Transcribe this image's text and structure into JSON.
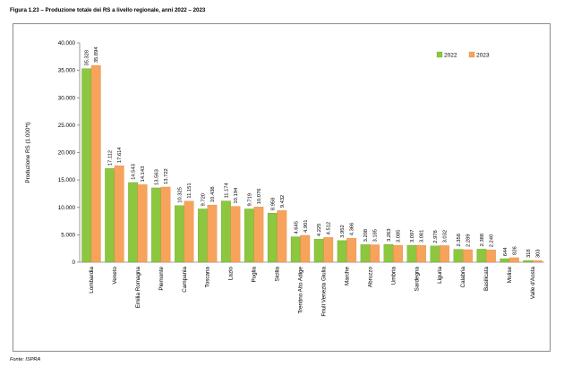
{
  "figure": {
    "title": "Figura 1.23 – Produzione totale dei RS a livello regionale, anni 2022 – 2023",
    "source": "Fonte: ISPRA"
  },
  "colors": {
    "s2022": "#8dc63f",
    "s2023": "#f7a35c",
    "axis": "#808080"
  },
  "chart_data": {
    "type": "bar",
    "ylabel": "Produzione RS (1.000*t)",
    "ylim": [
      0,
      40000
    ],
    "yticks": [
      "0",
      "5.000",
      "10.000",
      "15.000",
      "20.000",
      "25.000",
      "30.000",
      "35.000",
      "40.000"
    ],
    "legend_position": "top-right",
    "categories": [
      "Lombardia",
      "Veneto",
      "Emilia Romagna",
      "Piemonte",
      "Campania",
      "Toscana",
      "Lazio",
      "Puglia",
      "Sicilia",
      "Trentino Alto Adige",
      "Friuli Venezia Giulia",
      "Marche",
      "Abruzzo",
      "Umbria",
      "Sardegna",
      "Liguria",
      "Calabria",
      "Basilicata",
      "Molise",
      "Valle d'Aosta"
    ],
    "series": [
      {
        "name": "2022",
        "values": [
          35328,
          17112,
          14543,
          13563,
          10325,
          9720,
          11174,
          9719,
          8958,
          4645,
          4225,
          3952,
          3208,
          3263,
          3097,
          2978,
          2358,
          2388,
          644,
          318
        ],
        "labels": [
          "35.328",
          "17.112",
          "14.543",
          "13.563",
          "10.325",
          "9.720",
          "11.174",
          "9.719",
          "8.958",
          "4.645",
          "4.225",
          "3.952",
          "3.208",
          "3.263",
          "3.097",
          "2.978",
          "2.358",
          "2.388",
          "644",
          "318"
        ]
      },
      {
        "name": "2023",
        "values": [
          35894,
          17614,
          14143,
          13722,
          11151,
          10438,
          10194,
          10076,
          9432,
          4901,
          4512,
          4366,
          3185,
          3085,
          3081,
          3032,
          2289,
          2240,
          826,
          303
        ],
        "labels": [
          "35.894",
          "17.614",
          "14.143",
          "13.722",
          "11.151",
          "10.438",
          "10.194",
          "10.076",
          "9.432",
          "4.901",
          "4.512",
          "4.366",
          "3.185",
          "3.085",
          "3.081",
          "3.032",
          "2.289",
          "2.240",
          "826",
          "303"
        ]
      }
    ]
  }
}
